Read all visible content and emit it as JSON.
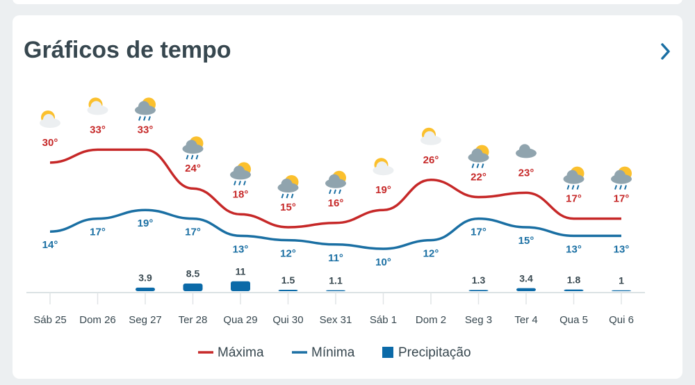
{
  "chart_data": {
    "type": "line",
    "title": "Gráficos de tempo",
    "categories": [
      "Sáb 25",
      "Dom 26",
      "Seg 27",
      "Ter 28",
      "Qua 29",
      "Qui 30",
      "Sex 31",
      "Sáb 1",
      "Dom 2",
      "Seg 3",
      "Ter 4",
      "Qua 5",
      "Qui 6"
    ],
    "series": [
      {
        "name": "Máxima",
        "color": "#c62828",
        "values": [
          30,
          33,
          33,
          24,
          18,
          15,
          16,
          19,
          26,
          22,
          23,
          17,
          17
        ],
        "value_labels": [
          "30°",
          "33°",
          "33°",
          "24°",
          "18°",
          "15°",
          "16°",
          "19°",
          "26°",
          "22°",
          "23°",
          "17°",
          "17°"
        ]
      },
      {
        "name": "Mínima",
        "color": "#1a6fa3",
        "values": [
          14,
          17,
          19,
          17,
          13,
          12,
          11,
          10,
          12,
          17,
          15,
          13,
          13
        ],
        "value_labels": [
          "14°",
          "17°",
          "19°",
          "17°",
          "13°",
          "12°",
          "11°",
          "10°",
          "12°",
          "17°",
          "15°",
          "13°",
          "13°"
        ]
      },
      {
        "name": "Precipitação",
        "type": "bar",
        "color": "#0b6aa8",
        "values": [
          null,
          null,
          3.9,
          8.5,
          11,
          1.5,
          1.1,
          null,
          null,
          1.3,
          3.4,
          1.8,
          1
        ]
      }
    ]
  }
}
